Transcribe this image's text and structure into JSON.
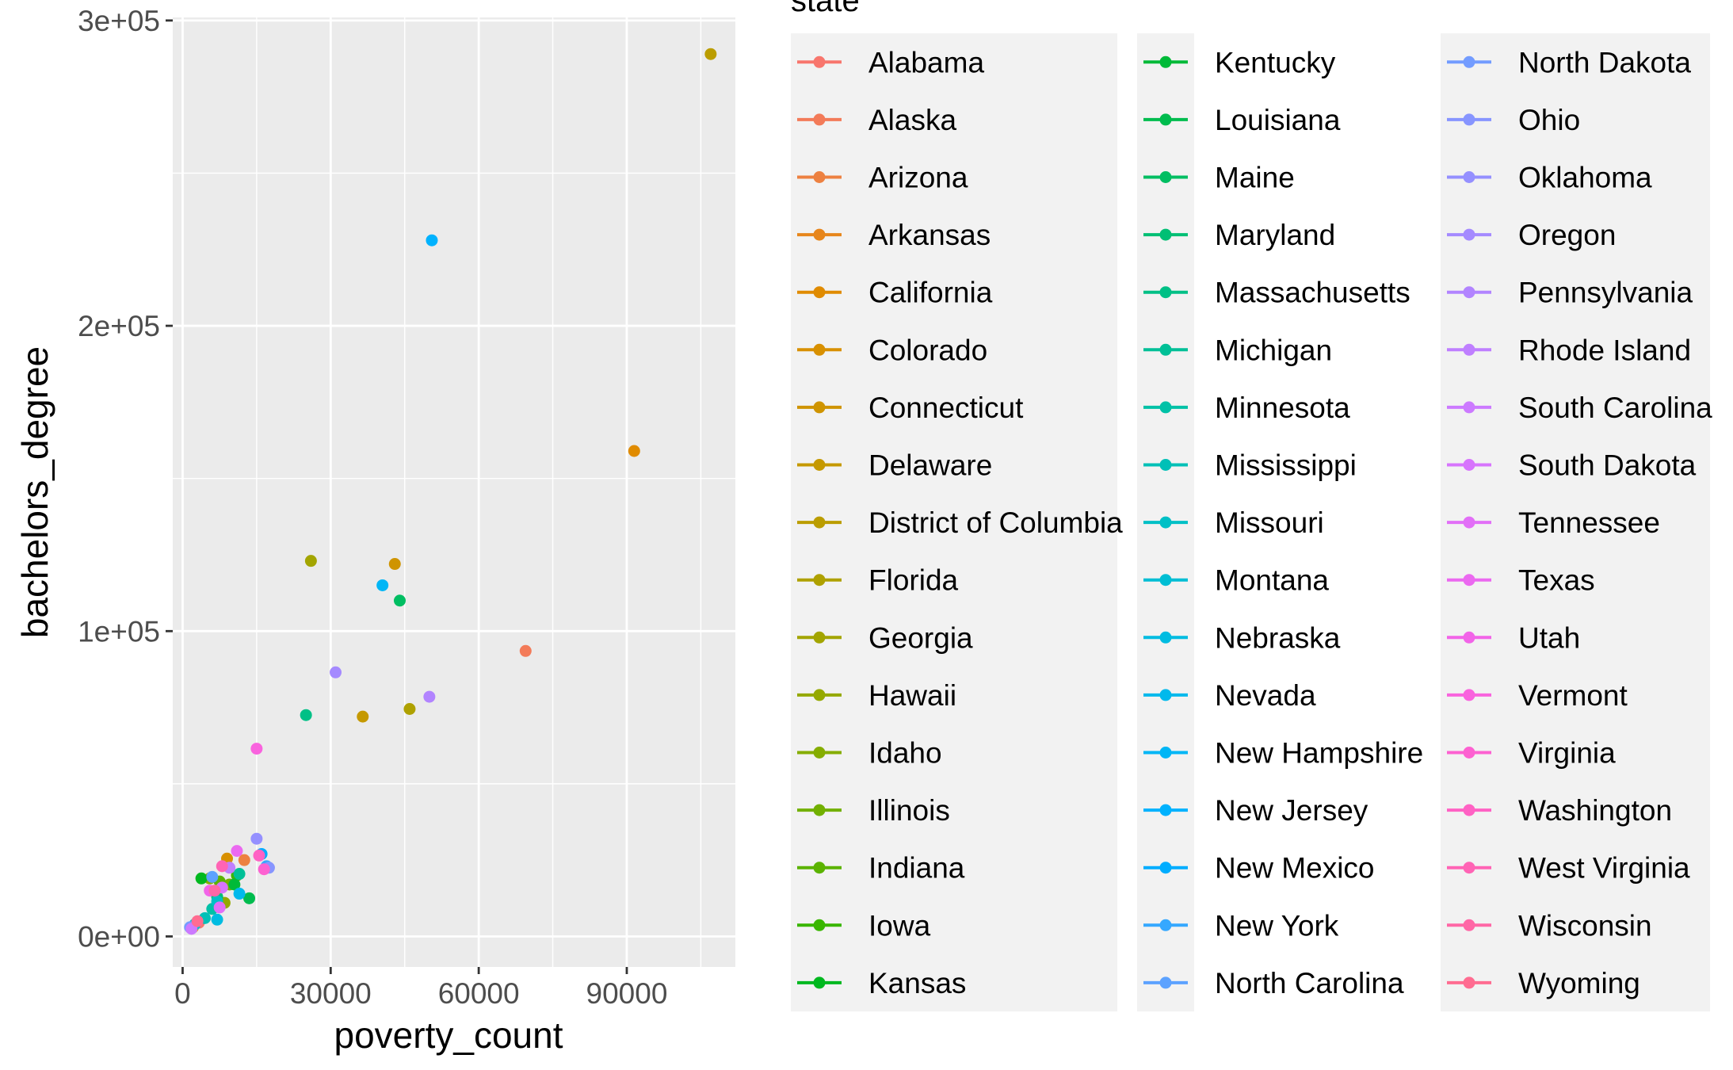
{
  "chart_data": {
    "type": "scatter",
    "xlabel": "poverty_count",
    "ylabel": "bachelors_degree",
    "xlim": [
      -2000,
      112000
    ],
    "ylim": [
      -10000,
      301000
    ],
    "x_ticks": [
      0,
      30000,
      60000,
      90000
    ],
    "x_tick_labels": [
      "0",
      "30000",
      "60000",
      "90000"
    ],
    "y_ticks": [
      0,
      100000,
      200000,
      300000
    ],
    "y_tick_labels": [
      "0e+00",
      "1e+05",
      "2e+05",
      "3e+05"
    ],
    "grid": true,
    "legend": {
      "title": "state",
      "placement": "right",
      "columns": 3
    },
    "series": [
      {
        "name": "Alabama",
        "color": "#F8766D",
        "x": 3300,
        "y": 4500
      },
      {
        "name": "Alaska",
        "color": "#F37B59",
        "x": 69500,
        "y": 93500
      },
      {
        "name": "Arizona",
        "color": "#ED8141",
        "x": 12500,
        "y": 25000
      },
      {
        "name": "Arkansas",
        "color": "#E7861B",
        "x": 2100,
        "y": 3000
      },
      {
        "name": "California",
        "color": "#E08B00",
        "x": 91500,
        "y": 159000
      },
      {
        "name": "Colorado",
        "color": "#D89000",
        "x": 9000,
        "y": 25500
      },
      {
        "name": "Connecticut",
        "color": "#CF9400",
        "x": 43000,
        "y": 122000
      },
      {
        "name": "Delaware",
        "color": "#C59900",
        "x": 36500,
        "y": 72000
      },
      {
        "name": "District of Columbia",
        "color": "#BB9D00",
        "x": 107000,
        "y": 289000
      },
      {
        "name": "Florida",
        "color": "#AFA100",
        "x": 46000,
        "y": 74500
      },
      {
        "name": "Georgia",
        "color": "#A3A500",
        "x": 26000,
        "y": 123000
      },
      {
        "name": "Hawaii",
        "color": "#95A900",
        "x": 8500,
        "y": 11000
      },
      {
        "name": "Idaho",
        "color": "#85AD00",
        "x": 5500,
        "y": 19000
      },
      {
        "name": "Illinois",
        "color": "#72B000",
        "x": 9500,
        "y": 17000
      },
      {
        "name": "Indiana",
        "color": "#5BB300",
        "x": 7500,
        "y": 18000
      },
      {
        "name": "Iowa",
        "color": "#39B600",
        "x": 11000,
        "y": 20000
      },
      {
        "name": "Kansas",
        "color": "#00B81F",
        "x": 3800,
        "y": 19000
      },
      {
        "name": "Kentucky",
        "color": "#00BA38",
        "x": 10500,
        "y": 17000
      },
      {
        "name": "Louisiana",
        "color": "#00BC4E",
        "x": 13500,
        "y": 12500
      },
      {
        "name": "Maine",
        "color": "#00BE62",
        "x": 44000,
        "y": 110000
      },
      {
        "name": "Maryland",
        "color": "#00BF74",
        "x": 7000,
        "y": 13000
      },
      {
        "name": "Massachusetts",
        "color": "#00C086",
        "x": 25000,
        "y": 72500
      },
      {
        "name": "Michigan",
        "color": "#00C097",
        "x": 11500,
        "y": 20500
      },
      {
        "name": "Minnesota",
        "color": "#00C1A7",
        "x": 6000,
        "y": 9000
      },
      {
        "name": "Mississippi",
        "color": "#00C0B7",
        "x": 4500,
        "y": 6000
      },
      {
        "name": "Missouri",
        "color": "#00C0C6",
        "x": 7000,
        "y": 11500
      },
      {
        "name": "Montana",
        "color": "#00BED4",
        "x": 2500,
        "y": 4000
      },
      {
        "name": "Nebraska",
        "color": "#00BCE1",
        "x": 7000,
        "y": 5500
      },
      {
        "name": "Nevada",
        "color": "#00B9EC",
        "x": 11500,
        "y": 14000
      },
      {
        "name": "New Hampshire",
        "color": "#00B6F6",
        "x": 40500,
        "y": 115000
      },
      {
        "name": "New Jersey",
        "color": "#00B2FE",
        "x": 50500,
        "y": 228000
      },
      {
        "name": "New Mexico",
        "color": "#00ADFF",
        "x": 16000,
        "y": 27000
      },
      {
        "name": "New York",
        "color": "#35A8FF",
        "x": 17000,
        "y": 23000
      },
      {
        "name": "North Carolina",
        "color": "#5CA2FF",
        "x": 6000,
        "y": 19500
      },
      {
        "name": "North Dakota",
        "color": "#739CFF",
        "x": 1500,
        "y": 3000
      },
      {
        "name": "Ohio",
        "color": "#8795FF",
        "x": 17500,
        "y": 22500
      },
      {
        "name": "Oklahoma",
        "color": "#9590FF",
        "x": 15000,
        "y": 32000
      },
      {
        "name": "Oregon",
        "color": "#A58AFF",
        "x": 31000,
        "y": 86500
      },
      {
        "name": "Pennsylvania",
        "color": "#B284FF",
        "x": 50000,
        "y": 78500
      },
      {
        "name": "Rhode Island",
        "color": "#BF7FFF",
        "x": 9500,
        "y": 22500
      },
      {
        "name": "South Carolina",
        "color": "#CC7AFF",
        "x": 1800,
        "y": 2500
      },
      {
        "name": "South Dakota",
        "color": "#D774FD",
        "x": 8000,
        "y": 16000
      },
      {
        "name": "Tennessee",
        "color": "#E26FF7",
        "x": 7500,
        "y": 9500
      },
      {
        "name": "Texas",
        "color": "#EB69F0",
        "x": 11000,
        "y": 28000
      },
      {
        "name": "Utah",
        "color": "#F264E8",
        "x": 5500,
        "y": 15000
      },
      {
        "name": "Vermont",
        "color": "#F963DE",
        "x": 15000,
        "y": 61500
      },
      {
        "name": "Virginia",
        "color": "#FD61D1",
        "x": 16500,
        "y": 22000
      },
      {
        "name": "Washington",
        "color": "#FF62C4",
        "x": 15500,
        "y": 26500
      },
      {
        "name": "West Virginia",
        "color": "#FF64B5",
        "x": 8000,
        "y": 23000
      },
      {
        "name": "Wisconsin",
        "color": "#FF67A6",
        "x": 6500,
        "y": 15000
      },
      {
        "name": "Wyoming",
        "color": "#FF6C91",
        "x": 3000,
        "y": 5000
      }
    ]
  }
}
